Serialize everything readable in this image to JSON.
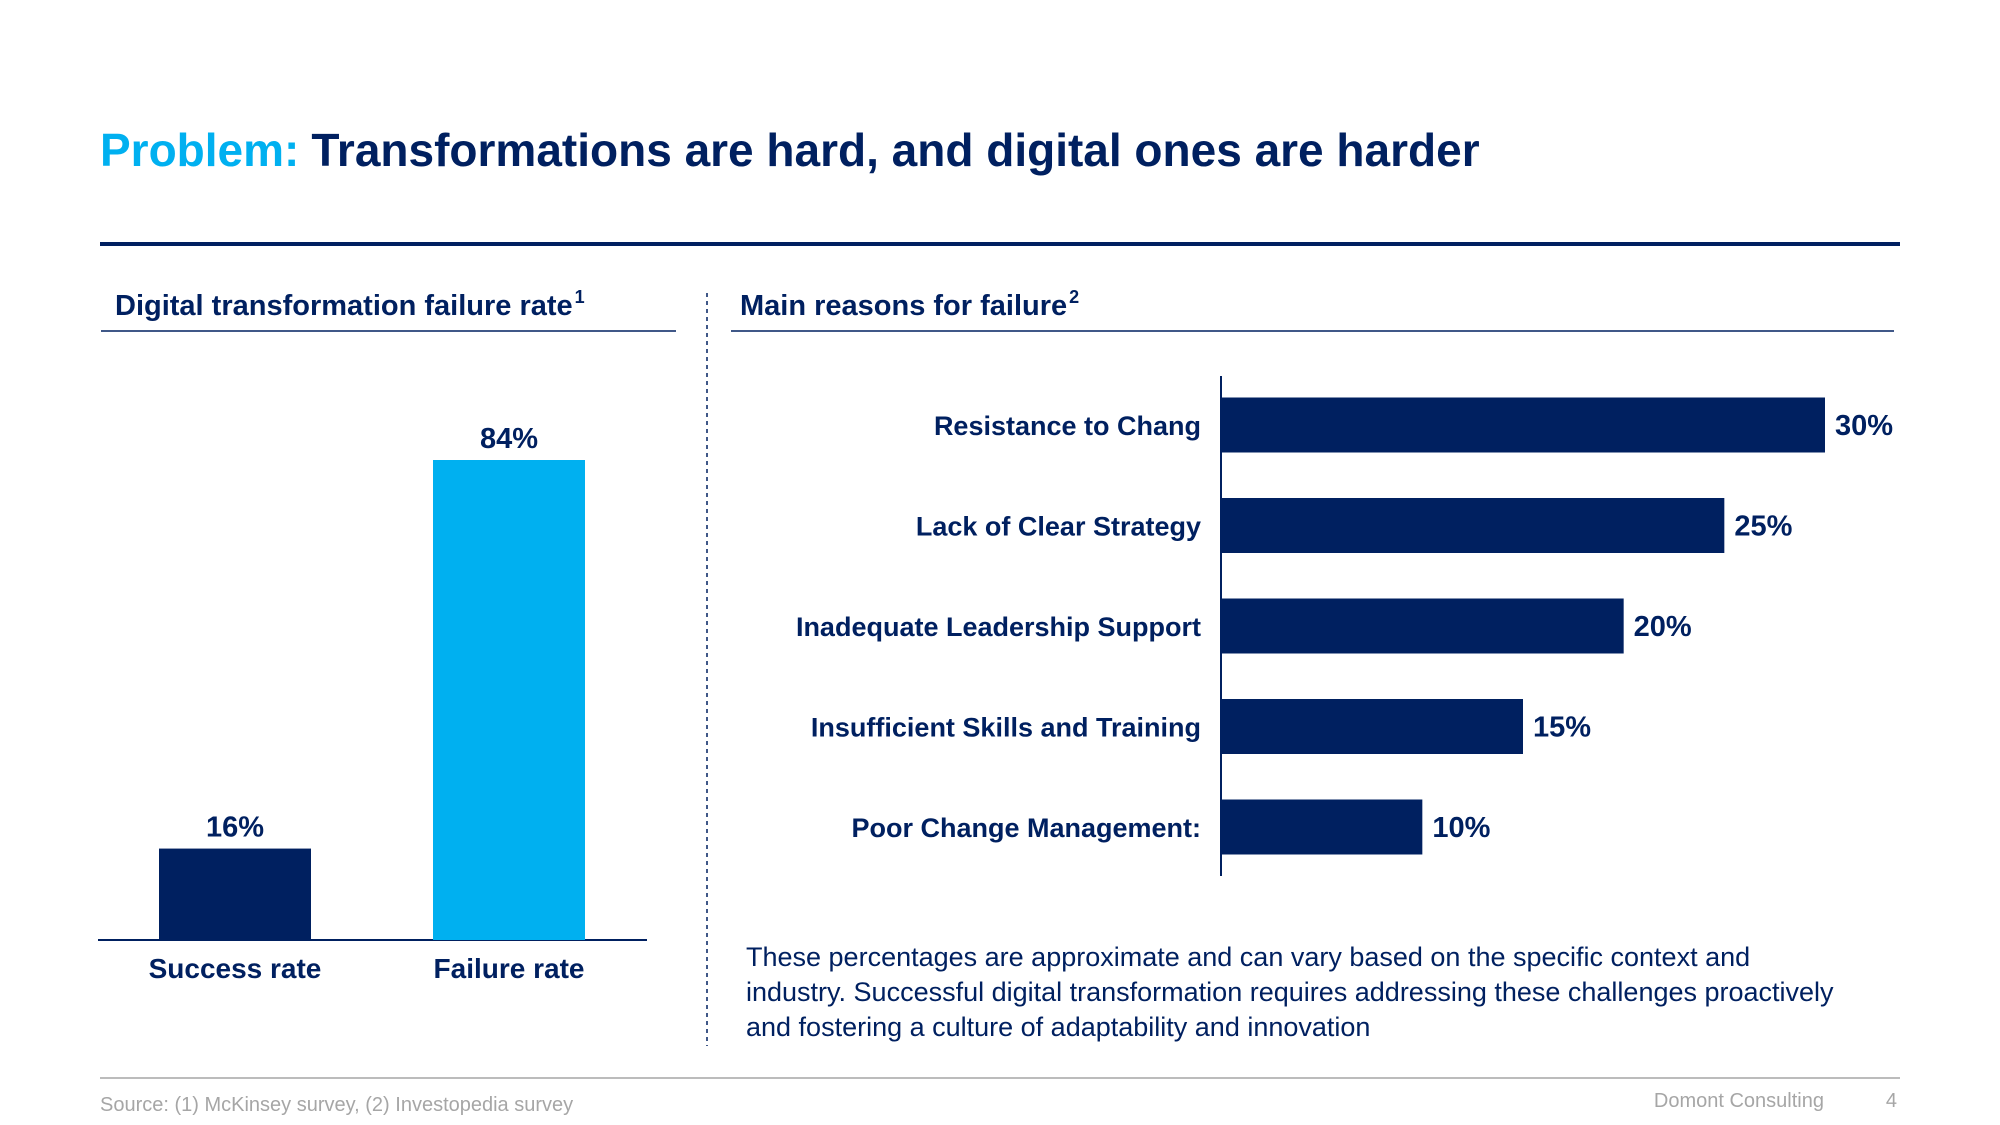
{
  "header": {
    "prefix": "Problem:",
    "title": "Transformations are hard, and digital ones are harder"
  },
  "chart_data": [
    {
      "type": "bar",
      "orientation": "vertical",
      "title": "Digital transformation failure rate",
      "title_sup": "1",
      "categories": [
        "Success rate",
        "Failure rate"
      ],
      "values": [
        16,
        84
      ],
      "value_labels": [
        "16%",
        "84%"
      ],
      "colors": [
        "#002060",
        "#00b0f0"
      ]
    },
    {
      "type": "bar",
      "orientation": "horizontal",
      "title": "Main reasons for failure",
      "title_sup": "2",
      "categories": [
        "Resistance to Chang",
        "Lack of Clear Strategy",
        "Inadequate Leadership Support",
        "Insufficient Skills and Training",
        "Poor Change Management:"
      ],
      "values": [
        30,
        25,
        20,
        15,
        10
      ],
      "value_labels": [
        "30%",
        "25%",
        "20%",
        "15%",
        "10%"
      ],
      "color": "#002060"
    }
  ],
  "note": "These percentages are approximate and can vary based on the specific context and industry. Successful digital transformation requires addressing these challenges proactively and fostering a culture of adaptability and innovation",
  "footer": {
    "source": "Source: (1) McKinsey survey, (2) Investopedia survey",
    "company": "Domont Consulting",
    "page": "4"
  }
}
